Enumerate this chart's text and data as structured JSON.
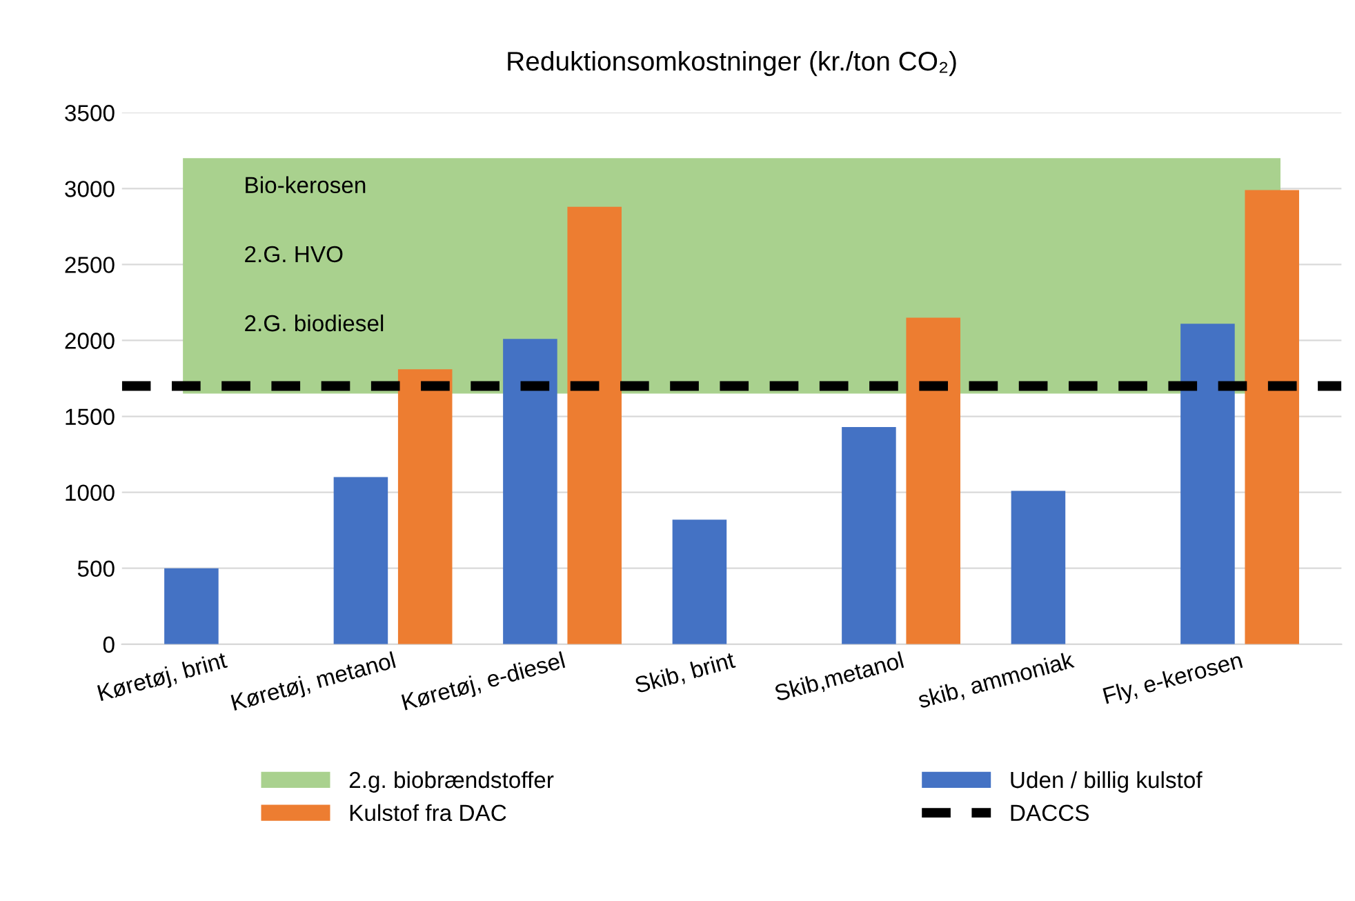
{
  "chart_data": {
    "type": "bar",
    "title": "Reduktionsomkostninger (kr./ton CO₂)",
    "categories": [
      "Køretøj, brint",
      "Køretøj, metanol",
      "Køretøj, e-diesel",
      "Skib, brint",
      "Skib,metanol",
      "skib, ammoniak",
      "Fly, e-kerosen"
    ],
    "series": [
      {
        "name": "Uden / billig kulstof",
        "color": "#4472c4",
        "values": [
          500,
          1100,
          2010,
          820,
          1430,
          1010,
          2110
        ]
      },
      {
        "name": "Kulstof fra DAC",
        "color": "#ed7d31",
        "values": [
          null,
          1810,
          2880,
          null,
          2150,
          null,
          2990
        ]
      }
    ],
    "ylim": [
      0,
      3500
    ],
    "yticks": [
      0,
      500,
      1000,
      1500,
      2000,
      2500,
      3000,
      3500
    ],
    "grid": "y",
    "legend": "bottom",
    "bands": [
      {
        "axis": "y",
        "from": 1650,
        "to": 3200,
        "label": "2.g. biobrændstoffer",
        "color": "#a9d18e"
      }
    ],
    "ref_lines": [
      {
        "axis": "y",
        "value": 1700,
        "label": "DACCS",
        "color": "#000000",
        "line_style": "dashed"
      }
    ],
    "annotations": [
      "Bio-kerosen",
      "2.G. HVO",
      "2.G. biodiesel"
    ]
  }
}
